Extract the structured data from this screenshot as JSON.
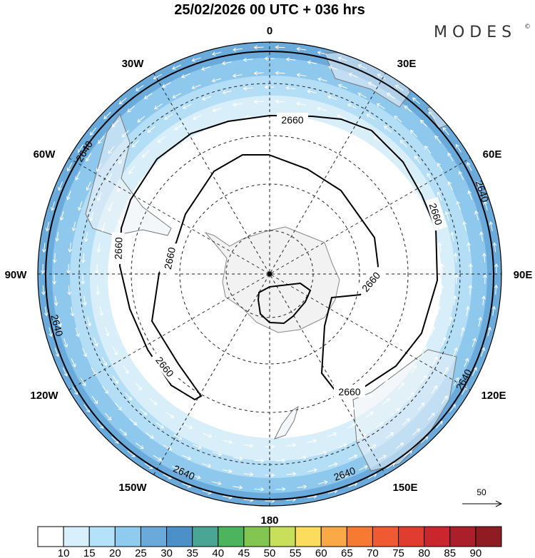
{
  "header": {
    "title": "25/02/2026  00 UTC  + 036 hrs",
    "logo": "MODES",
    "logo_mark": "©"
  },
  "map": {
    "projection": "south polar stereographic",
    "longitude_labels": {
      "n0": "0",
      "e30": "30E",
      "e60": "60E",
      "e90": "90E",
      "e120": "120E",
      "e150": "150E",
      "s180": "180",
      "w150": "150W",
      "w120": "120W",
      "w90": "90W",
      "w60": "60W",
      "w30": "30W"
    },
    "contours": {
      "c2660": "2660",
      "c2640": "2640"
    },
    "vector_reference": {
      "label": "50"
    },
    "shading_colors": [
      "#ffffff",
      "#d8effa",
      "#b3def6",
      "#8ec8ed",
      "#6aabdc"
    ]
  },
  "colorbar": {
    "colors": [
      "#ffffff",
      "#d7f0fb",
      "#b4e2f8",
      "#8fcbee",
      "#6aaadb",
      "#4b90c8",
      "#4aa595",
      "#4db45e",
      "#82c550",
      "#c8df5c",
      "#fbdc5c",
      "#f9a946",
      "#f77a33",
      "#ef5a33",
      "#e03c30",
      "#c9262e",
      "#ab1f2b",
      "#8e1c22"
    ],
    "labels": [
      "10",
      "15",
      "20",
      "25",
      "30",
      "35",
      "40",
      "45",
      "50",
      "55",
      "60",
      "65",
      "70",
      "75",
      "80",
      "85",
      "90"
    ]
  }
}
